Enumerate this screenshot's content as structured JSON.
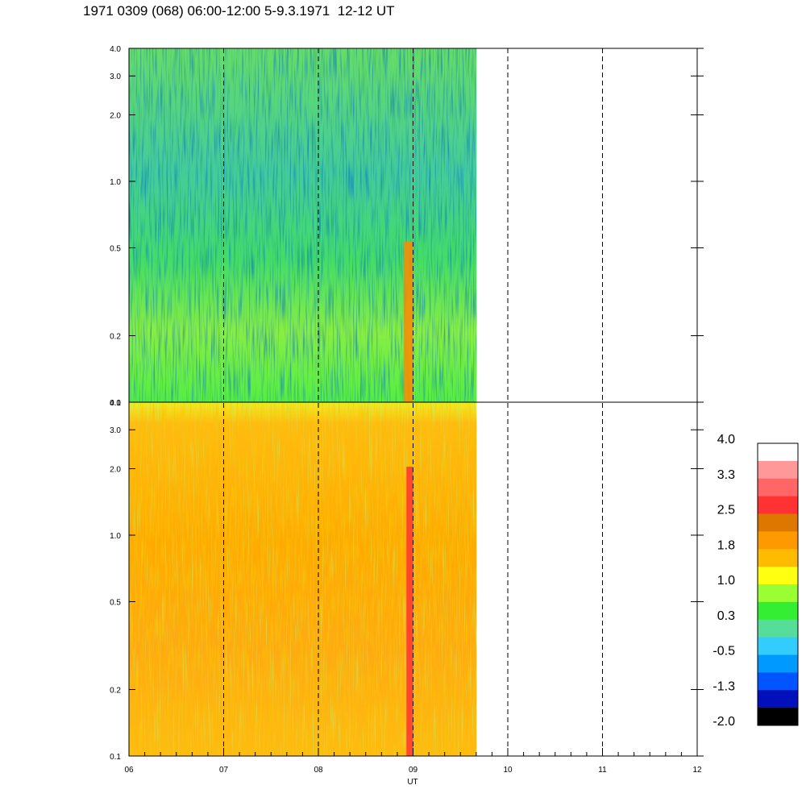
{
  "title": "1971 0309 (068) 06:00-12:00 5-9.3.1971  12-12 UT",
  "chart_data": {
    "type": "heatmap",
    "title": "1971 0309 (068) 06:00-12:00 5-9.3.1971  12-12 UT",
    "xlabel": "UT",
    "x_ticks": [
      "06",
      "07",
      "08",
      "09",
      "10",
      "11",
      "12"
    ],
    "x_range": [
      6,
      12
    ],
    "data_coverage_end_hour": 9.67,
    "panels": [
      {
        "id": "upper",
        "y_scale": "log",
        "y_range": [
          0.1,
          4.0
        ],
        "y_ticks": [
          "0.1",
          "0.2",
          "0.5",
          "1.0",
          "2.0",
          "3.0",
          "4.0"
        ],
        "dominant_levels": "green / teal, about -0.5 to 1.0",
        "highlight_band": {
          "start_hour": 8.9,
          "end_hour": 9.0,
          "level": "orange"
        }
      },
      {
        "id": "lower",
        "y_scale": "log",
        "y_range": [
          0.1,
          4.0
        ],
        "y_ticks": [
          "0.1",
          "0.2",
          "0.5",
          "1.0",
          "2.0",
          "3.0",
          "4.0"
        ],
        "dominant_levels": "orange / yellow, about 1.0 to 2.2",
        "highlight_band": {
          "start_hour": 8.93,
          "end_hour": 9.0,
          "level": "red"
        }
      }
    ],
    "dashed_hour_lines": [
      7,
      8,
      9,
      10,
      11
    ],
    "colorbar": {
      "labels": [
        "4.0",
        "3.3",
        "2.5",
        "1.8",
        "1.0",
        "0.3",
        "-0.5",
        "-1.3",
        "-2.0"
      ],
      "colors_top_to_bottom": [
        "#ffffff",
        "#ff9999",
        "#ff6666",
        "#ff3333",
        "#dd7700",
        "#ff9900",
        "#ffbb00",
        "#ffff11",
        "#99ff33",
        "#33ee33",
        "#55dd99",
        "#33ccff",
        "#0099ff",
        "#0055ff",
        "#0011bb",
        "#000000"
      ]
    }
  }
}
